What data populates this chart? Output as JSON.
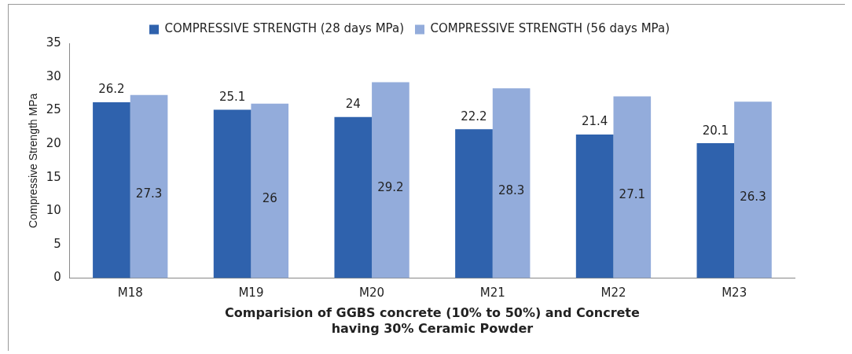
{
  "chart_data": {
    "type": "bar",
    "xlabel": "Comparision of GGBS concrete (10% to 50%) and Concrete having 30% Ceramic Powder",
    "ylabel": "Compressive Strength MPa",
    "categories": [
      "M18",
      "M19",
      "M20",
      "M21",
      "M22",
      "M23"
    ],
    "series": [
      {
        "name": "COMPRESSIVE STRENGTH (28 days MPa)",
        "color": "#2f62ad",
        "values": [
          26.2,
          25.1,
          24,
          22.2,
          21.4,
          20.1
        ]
      },
      {
        "name": "COMPRESSIVE STRENGTH (56 days MPa)",
        "color": "#93acdb",
        "values": [
          27.3,
          26,
          29.2,
          28.3,
          27.1,
          26.3
        ]
      }
    ],
    "ylim": [
      0,
      35
    ],
    "yticks": [
      0,
      5,
      10,
      15,
      20,
      25,
      30,
      35
    ],
    "grid": false,
    "legend": "top",
    "data_labels": true
  }
}
